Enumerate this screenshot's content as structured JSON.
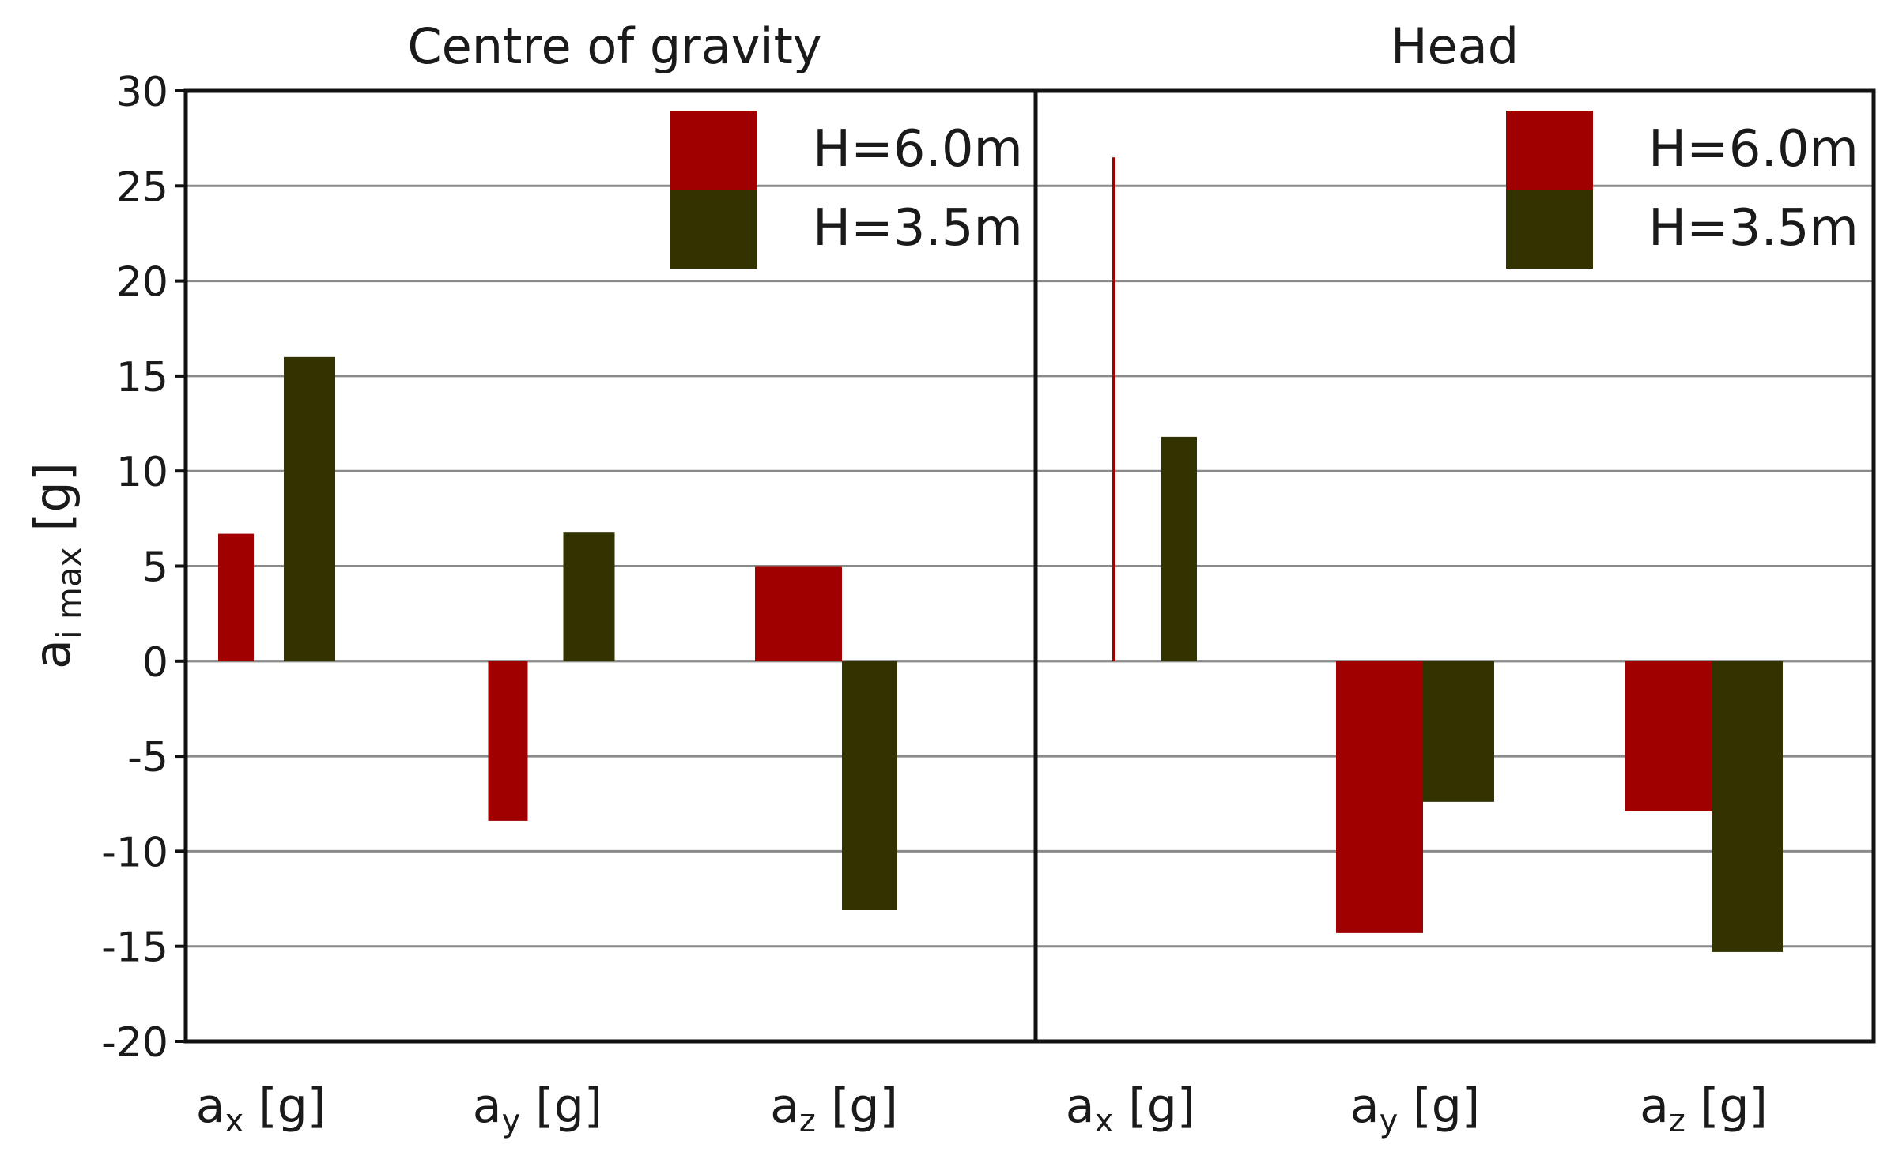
{
  "chart_data": {
    "type": "bar",
    "ylabel": "a",
    "ylabel_sub": "i max",
    "ylabel_unit": "[g]",
    "ylim": [
      -20,
      30
    ],
    "yticks": [
      30,
      25,
      20,
      15,
      10,
      5,
      0,
      -5,
      -10,
      -15,
      -20
    ],
    "ytick_labels": [
      "30",
      "25",
      "20",
      "15",
      "10",
      "5",
      "0",
      "-5",
      "-10",
      "-15",
      "-20"
    ],
    "grid": true,
    "legend_position": "top-right",
    "colors": {
      "H=6.0m": "#a00000",
      "H=3.5m": "#333300"
    },
    "categories": [
      {
        "base": "a",
        "sub": "x",
        "unit": "[g]"
      },
      {
        "base": "a",
        "sub": "y",
        "unit": "[g]"
      },
      {
        "base": "a",
        "sub": "z",
        "unit": "[g]"
      }
    ],
    "panels": [
      {
        "title": "Centre of gravity",
        "series": [
          {
            "name": "H=6.0m",
            "values": [
              6.7,
              -8.4,
              5.0
            ]
          },
          {
            "name": "H=3.5m",
            "values": [
              16.0,
              6.8,
              -13.1
            ]
          }
        ]
      },
      {
        "title": "Head",
        "series": [
          {
            "name": "H=6.0m",
            "values": [
              26.5,
              -14.3,
              -7.9
            ]
          },
          {
            "name": "H=3.5m",
            "values": [
              11.8,
              -7.4,
              -15.3
            ]
          }
        ]
      }
    ]
  }
}
